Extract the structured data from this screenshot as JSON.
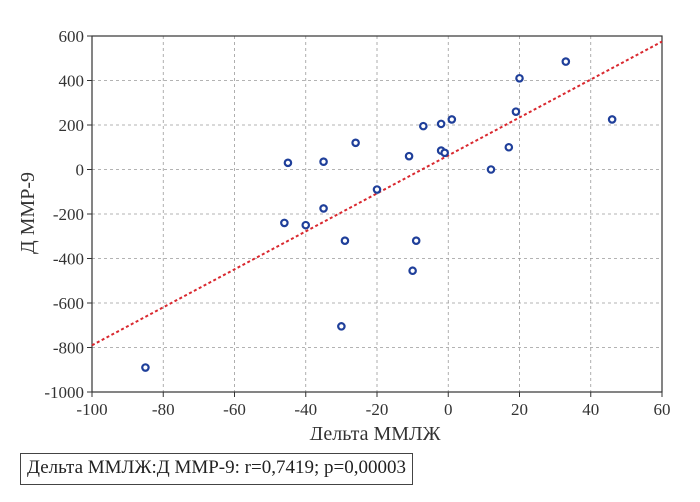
{
  "chart_data": {
    "type": "scatter",
    "title": "",
    "xlabel": "Дельта ММЛЖ",
    "ylabel": "Д ММР-9",
    "xlim": [
      -100,
      60
    ],
    "ylim": [
      -1000,
      600
    ],
    "x_ticks": [
      -100,
      -80,
      -60,
      -40,
      -20,
      0,
      20,
      40,
      60
    ],
    "y_ticks": [
      -1000,
      -800,
      -600,
      -400,
      -200,
      0,
      200,
      400,
      600
    ],
    "x_tick_labels": [
      "-100",
      "-80",
      "-60",
      "-40",
      "-20",
      "0",
      "20",
      "40",
      "60"
    ],
    "y_tick_labels": [
      "-1000",
      "-800",
      "-600",
      "-400",
      "-200",
      "0",
      "200",
      "400",
      "600"
    ],
    "grid": true,
    "point_color": "#1f3f9a",
    "regression_color": "#d9282f",
    "regression_line": {
      "x": [
        -100,
        60
      ],
      "y": [
        -790,
        575
      ]
    },
    "points": [
      {
        "x": -85,
        "y": -890
      },
      {
        "x": -45,
        "y": 30
      },
      {
        "x": -46,
        "y": -240
      },
      {
        "x": -40,
        "y": -250
      },
      {
        "x": -35,
        "y": 35
      },
      {
        "x": -35,
        "y": -175
      },
      {
        "x": -29,
        "y": -320
      },
      {
        "x": -30,
        "y": -705
      },
      {
        "x": -26,
        "y": 120
      },
      {
        "x": -20,
        "y": -90
      },
      {
        "x": -11,
        "y": 60
      },
      {
        "x": -10,
        "y": -455
      },
      {
        "x": -9,
        "y": -320
      },
      {
        "x": -7,
        "y": 195
      },
      {
        "x": -2,
        "y": 205
      },
      {
        "x": -2,
        "y": 85
      },
      {
        "x": -1,
        "y": 75
      },
      {
        "x": 1,
        "y": 225
      },
      {
        "x": 12,
        "y": 0
      },
      {
        "x": 17,
        "y": 100
      },
      {
        "x": 19,
        "y": 260
      },
      {
        "x": 20,
        "y": 410
      },
      {
        "x": 33,
        "y": 485
      },
      {
        "x": 46,
        "y": 225
      }
    ],
    "annotation": "Дельта ММЛЖ:Д ММР-9: r=0,7419; p=0,00003"
  }
}
